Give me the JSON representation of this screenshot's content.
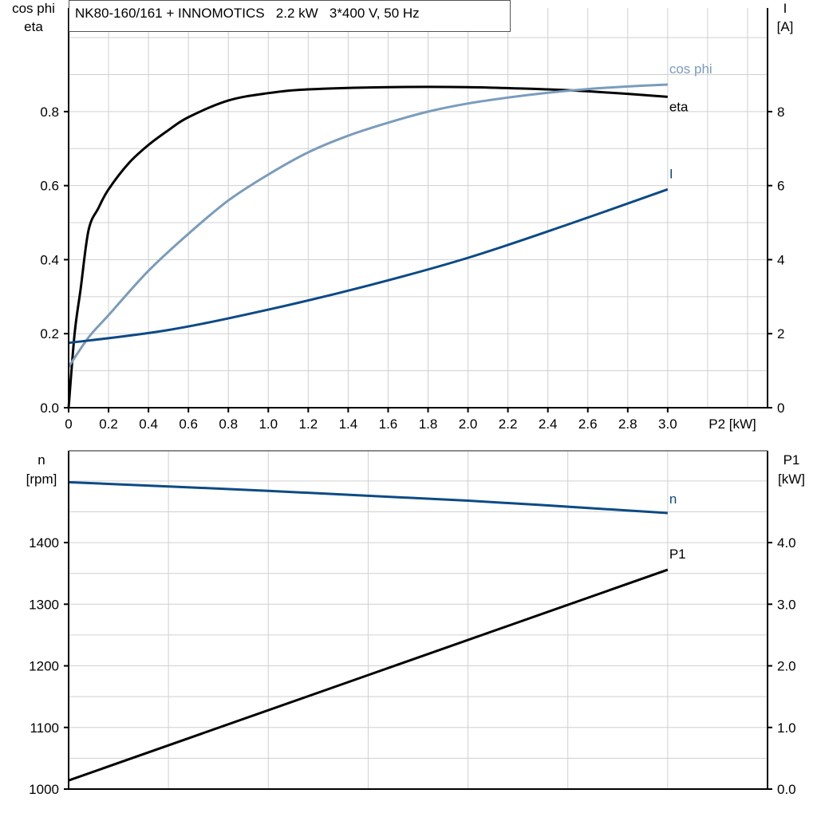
{
  "chart_data": [
    {
      "type": "line",
      "title": "NK80-160/161 + INNOMOTICS   2.2 kW   3*400 V, 50 Hz",
      "xlabel": "P2 [kW]",
      "ylabel_left": [
        "cos phi",
        "eta"
      ],
      "ylabel_right": [
        "I",
        "[A]"
      ],
      "xlim": [
        0,
        3.5
      ],
      "ylim_left": [
        0,
        1.08
      ],
      "ylim_right": [
        0,
        10.8
      ],
      "x_ticks": [
        "0",
        "0.2",
        "0.4",
        "0.6",
        "0.8",
        "1.0",
        "1.2",
        "1.4",
        "1.6",
        "1.8",
        "2.0",
        "2.2",
        "2.4",
        "2.6",
        "2.8",
        "3.0"
      ],
      "y_ticks_left": [
        "0.0",
        "0.2",
        "0.4",
        "0.6",
        "0.8"
      ],
      "y_ticks_right": [
        "0",
        "2",
        "4",
        "6",
        "8"
      ],
      "grid": true,
      "series": [
        {
          "name": "eta",
          "axis": "left",
          "color": "#000000",
          "x": [
            0,
            0.03,
            0.06,
            0.1,
            0.15,
            0.2,
            0.3,
            0.4,
            0.5,
            0.6,
            0.8,
            1.0,
            1.2,
            1.6,
            2.0,
            2.4,
            2.6,
            2.8,
            3.0
          ],
          "y": [
            0,
            0.2,
            0.32,
            0.48,
            0.54,
            0.59,
            0.66,
            0.71,
            0.75,
            0.785,
            0.83,
            0.85,
            0.86,
            0.866,
            0.866,
            0.86,
            0.855,
            0.848,
            0.84
          ]
        },
        {
          "name": "cos phi",
          "axis": "left",
          "color": "#7a9cbc",
          "x": [
            0,
            0.1,
            0.2,
            0.4,
            0.6,
            0.8,
            1.0,
            1.2,
            1.4,
            1.6,
            1.8,
            2.0,
            2.2,
            2.4,
            2.6,
            2.8,
            3.0
          ],
          "y": [
            0.11,
            0.19,
            0.25,
            0.37,
            0.47,
            0.56,
            0.63,
            0.69,
            0.735,
            0.77,
            0.8,
            0.822,
            0.838,
            0.851,
            0.861,
            0.868,
            0.873
          ]
        },
        {
          "name": "I",
          "axis": "right",
          "color": "#0c4a85",
          "x": [
            0,
            0.5,
            1.0,
            1.5,
            2.0,
            2.5,
            3.0
          ],
          "y": [
            1.75,
            2.1,
            2.65,
            3.3,
            4.05,
            4.95,
            5.9
          ]
        }
      ]
    },
    {
      "type": "line",
      "ylabel_left": [
        "n",
        "[rpm]"
      ],
      "ylabel_right": [
        "P1",
        "[kW]"
      ],
      "xlim": [
        0,
        3.5
      ],
      "ylim_left": [
        1000,
        1549
      ],
      "ylim_right": [
        0,
        5.49
      ],
      "y_ticks_left": [
        "1000",
        "1100",
        "1200",
        "1300",
        "1400"
      ],
      "y_ticks_right": [
        "0.0",
        "1.0",
        "2.0",
        "3.0",
        "4.0"
      ],
      "grid": true,
      "series": [
        {
          "name": "n",
          "axis": "left",
          "color": "#0c4a85",
          "x": [
            0,
            1.0,
            2.0,
            3.0
          ],
          "y": [
            1498,
            1484,
            1468,
            1448
          ]
        },
        {
          "name": "P1",
          "axis": "right",
          "color": "#000000",
          "x": [
            0,
            3.0
          ],
          "y": [
            0.14,
            3.56
          ]
        }
      ]
    }
  ]
}
